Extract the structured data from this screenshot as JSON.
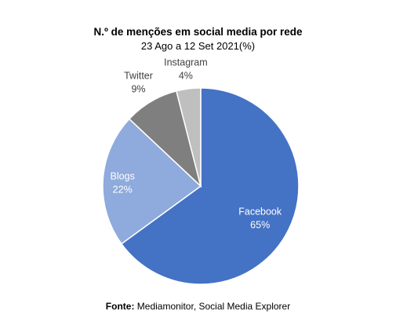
{
  "chart_data": {
    "type": "pie",
    "title": "N.º de menções em social media por rede",
    "subtitle": "23 Ago a 12 Set 2021(%)",
    "slices": [
      {
        "name": "Facebook",
        "value": 65,
        "label": "65%",
        "color": "#4472C4",
        "label_color": "#ffffff"
      },
      {
        "name": "Blogs",
        "value": 22,
        "label": "22%",
        "color": "#8FAADC",
        "label_color": "#ffffff"
      },
      {
        "name": "Twitter",
        "value": 9,
        "label": "9%",
        "color": "#7F7F7F",
        "label_color": "#404040"
      },
      {
        "name": "Instagram",
        "value": 4,
        "label": "4%",
        "color": "#BFBFBF",
        "label_color": "#404040"
      }
    ],
    "start": "12 o'clock",
    "direction": "clockwise"
  },
  "footer": {
    "prefix": "Fonte:",
    "text": "Mediamonitor, Social Media Explorer"
  }
}
